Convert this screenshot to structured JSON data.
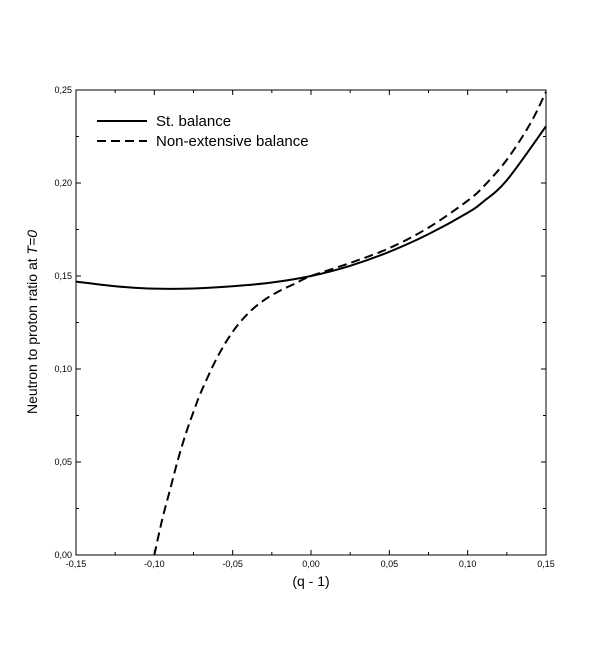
{
  "chart_data": {
    "type": "line",
    "xlabel": "(q - 1)",
    "ylabel": "Neutron to proton ratio at T=0",
    "xlim": [
      -0.15,
      0.15
    ],
    "ylim": [
      0.0,
      0.25
    ],
    "x_ticks": [
      "-0,15",
      "-0,10",
      "-0,05",
      "0,00",
      "0,05",
      "0,10",
      "0,15"
    ],
    "y_ticks": [
      "0,00",
      "0,05",
      "0,10",
      "0,15",
      "0,20",
      "0,25"
    ],
    "legend_position": "top-left",
    "grid": false,
    "series": [
      {
        "name": "St. balance",
        "style": "solid",
        "color": "#000000",
        "x": [
          -0.15,
          -0.125,
          -0.1,
          -0.075,
          -0.05,
          -0.025,
          0.0,
          0.025,
          0.05,
          0.075,
          0.1,
          0.11,
          0.125,
          0.15
        ],
        "y": [
          0.147,
          0.1445,
          0.1432,
          0.1433,
          0.1445,
          0.1465,
          0.15,
          0.1555,
          0.163,
          0.1725,
          0.184,
          0.19,
          0.2015,
          0.2305
        ]
      },
      {
        "name": "Non-extensive balance",
        "style": "dashed",
        "color": "#000000",
        "x": [
          -0.1,
          -0.095,
          -0.09,
          -0.085,
          -0.08,
          -0.075,
          -0.07,
          -0.06,
          -0.05,
          -0.04,
          -0.03,
          -0.02,
          -0.01,
          0.0,
          0.025,
          0.05,
          0.075,
          0.1,
          0.11,
          0.125,
          0.14,
          0.15
        ],
        "y": [
          0.0,
          0.019,
          0.035,
          0.051,
          0.065,
          0.077,
          0.088,
          0.106,
          0.12,
          0.13,
          0.137,
          0.142,
          0.146,
          0.15,
          0.157,
          0.165,
          0.176,
          0.1905,
          0.198,
          0.2125,
          0.232,
          0.249
        ]
      }
    ]
  },
  "legend": {
    "items": [
      {
        "label": "St. balance"
      },
      {
        "label": "Non-extensive balance"
      }
    ]
  },
  "axes": {
    "xlabel": "(q - 1)",
    "ylabel_main": "Neutron to proton ratio at ",
    "ylabel_italic": "T=0"
  }
}
